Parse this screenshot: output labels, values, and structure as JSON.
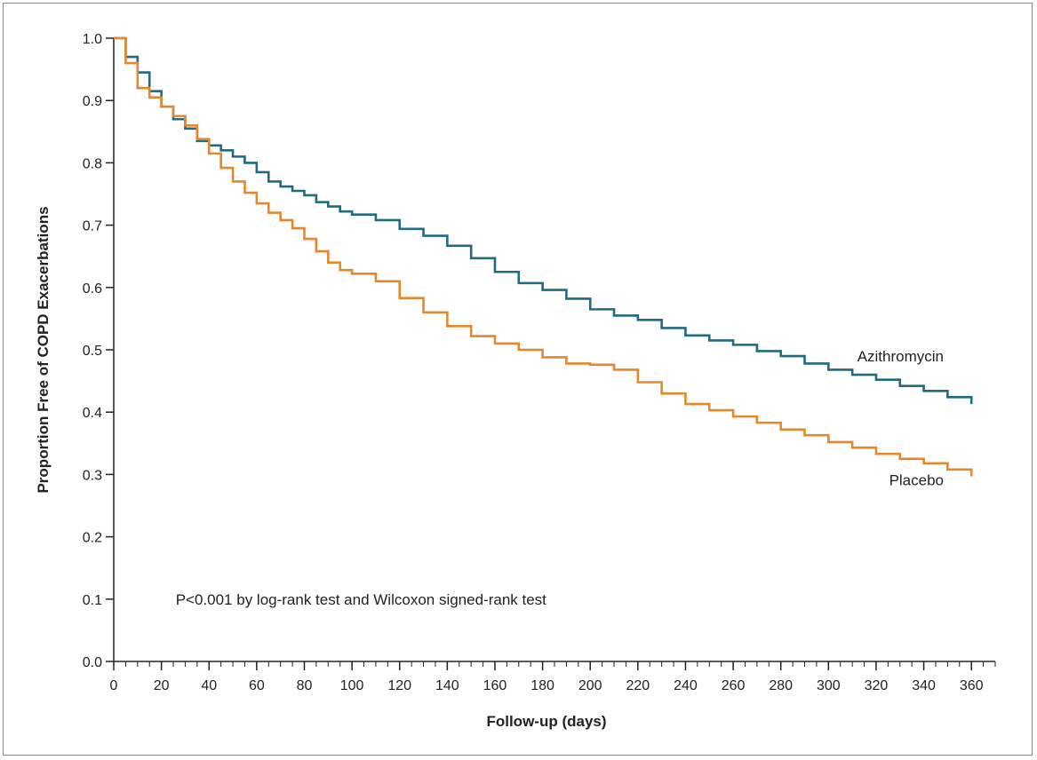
{
  "chart_data": {
    "type": "line",
    "step": true,
    "xlabel": "Follow-up (days)",
    "ylabel": "Proportion Free of COPD Exacerbations",
    "xlim": [
      0,
      370
    ],
    "ylim": [
      0,
      1.0
    ],
    "x_ticks": [
      "0",
      "20",
      "40",
      "60",
      "80",
      "100",
      "120",
      "140",
      "160",
      "180",
      "200",
      "220",
      "240",
      "260",
      "280",
      "300",
      "320",
      "340",
      "360"
    ],
    "y_ticks": [
      "0.0",
      "0.1",
      "0.2",
      "0.3",
      "0.4",
      "0.5",
      "0.6",
      "0.7",
      "0.8",
      "0.9",
      "1.0"
    ],
    "grid": false,
    "legend": "inline labels at curve ends",
    "annotation": "P<0.001 by log-rank test and Wilcoxon signed-rank test",
    "series": [
      {
        "name": "Azithromycin",
        "color": "#1f6b80",
        "x": [
          0,
          5,
          10,
          15,
          20,
          25,
          30,
          35,
          40,
          45,
          50,
          55,
          60,
          65,
          70,
          75,
          80,
          85,
          90,
          95,
          100,
          110,
          120,
          130,
          140,
          150,
          160,
          170,
          180,
          190,
          200,
          210,
          220,
          230,
          240,
          250,
          260,
          270,
          280,
          290,
          300,
          310,
          320,
          330,
          340,
          350,
          360
        ],
        "y": [
          1.0,
          0.97,
          0.945,
          0.915,
          0.89,
          0.87,
          0.855,
          0.835,
          0.828,
          0.82,
          0.81,
          0.8,
          0.785,
          0.77,
          0.762,
          0.755,
          0.748,
          0.737,
          0.73,
          0.722,
          0.717,
          0.708,
          0.694,
          0.683,
          0.667,
          0.647,
          0.625,
          0.607,
          0.596,
          0.582,
          0.565,
          0.555,
          0.548,
          0.535,
          0.523,
          0.515,
          0.508,
          0.498,
          0.49,
          0.478,
          0.468,
          0.46,
          0.452,
          0.442,
          0.434,
          0.424,
          0.413
        ]
      },
      {
        "name": "Placebo",
        "color": "#e5882b",
        "x": [
          0,
          5,
          10,
          15,
          20,
          25,
          30,
          35,
          40,
          45,
          50,
          55,
          60,
          65,
          70,
          75,
          80,
          85,
          90,
          95,
          100,
          110,
          120,
          130,
          140,
          150,
          160,
          170,
          180,
          190,
          200,
          210,
          220,
          230,
          240,
          250,
          260,
          270,
          280,
          290,
          300,
          310,
          320,
          330,
          340,
          350,
          360
        ],
        "y": [
          1.0,
          0.96,
          0.92,
          0.905,
          0.89,
          0.875,
          0.86,
          0.838,
          0.815,
          0.792,
          0.77,
          0.752,
          0.735,
          0.72,
          0.708,
          0.695,
          0.678,
          0.658,
          0.64,
          0.628,
          0.622,
          0.61,
          0.583,
          0.56,
          0.538,
          0.522,
          0.51,
          0.5,
          0.488,
          0.478,
          0.476,
          0.468,
          0.448,
          0.43,
          0.413,
          0.403,
          0.393,
          0.383,
          0.372,
          0.363,
          0.352,
          0.343,
          0.333,
          0.325,
          0.318,
          0.308,
          0.297
        ]
      }
    ]
  }
}
